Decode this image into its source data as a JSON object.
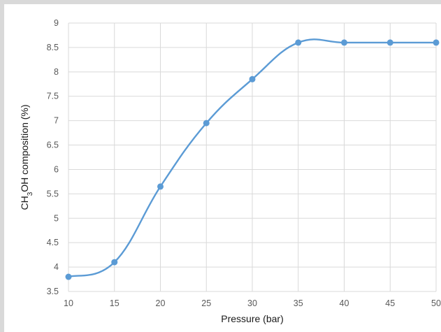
{
  "chart_data": {
    "type": "line",
    "title": "",
    "xlabel": "Pressure (bar)",
    "ylabel": {
      "parts": [
        {
          "text": "CH",
          "sub": false
        },
        {
          "text": "3",
          "sub": true
        },
        {
          "text": "OH composition (%)",
          "sub": false
        }
      ]
    },
    "x": [
      10,
      15,
      20,
      25,
      30,
      35,
      40,
      45,
      50
    ],
    "series": [
      {
        "values": [
          3.8,
          4.1,
          5.65,
          6.95,
          7.85,
          8.6,
          8.6,
          8.6,
          8.6
        ],
        "color": "#5b9bd5",
        "smooth": true,
        "markers": true
      }
    ],
    "xlim": [
      10,
      50
    ],
    "ylim": [
      3.5,
      9
    ],
    "xticks": [
      "10",
      "15",
      "20",
      "25",
      "30",
      "35",
      "40",
      "45",
      "50"
    ],
    "yticks": [
      "3.5",
      "4",
      "4.5",
      "5",
      "5.5",
      "6",
      "6.5",
      "7",
      "7.5",
      "8",
      "8.5",
      "9"
    ],
    "grid": true,
    "legend": "none"
  }
}
